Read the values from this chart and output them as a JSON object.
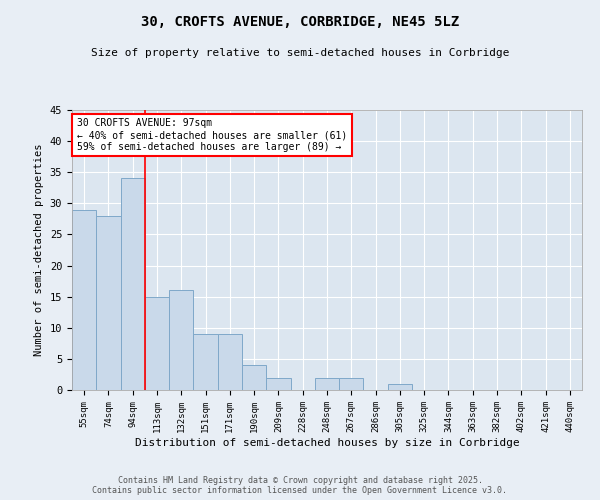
{
  "title_line1": "30, CROFTS AVENUE, CORBRIDGE, NE45 5LZ",
  "title_line2": "Size of property relative to semi-detached houses in Corbridge",
  "xlabel": "Distribution of semi-detached houses by size in Corbridge",
  "ylabel": "Number of semi-detached properties",
  "categories": [
    "55sqm",
    "74sqm",
    "94sqm",
    "113sqm",
    "132sqm",
    "151sqm",
    "171sqm",
    "190sqm",
    "209sqm",
    "228sqm",
    "248sqm",
    "267sqm",
    "286sqm",
    "305sqm",
    "325sqm",
    "344sqm",
    "363sqm",
    "382sqm",
    "402sqm",
    "421sqm",
    "440sqm"
  ],
  "values": [
    29,
    28,
    34,
    15,
    16,
    9,
    9,
    4,
    2,
    0,
    2,
    2,
    0,
    1,
    0,
    0,
    0,
    0,
    0,
    0,
    0
  ],
  "bar_color": "#c9d9ea",
  "bar_edge_color": "#7fa8c9",
  "bar_width": 1.0,
  "ylim": [
    0,
    45
  ],
  "yticks": [
    0,
    5,
    10,
    15,
    20,
    25,
    30,
    35,
    40,
    45
  ],
  "red_line_x": 2.5,
  "annotation_title": "30 CROFTS AVENUE: 97sqm",
  "annotation_line1": "← 40% of semi-detached houses are smaller (61)",
  "annotation_line2": "59% of semi-detached houses are larger (89) →",
  "background_color": "#e8eef5",
  "plot_bg_color": "#dce6f0",
  "grid_color": "#ffffff",
  "footer_line1": "Contains HM Land Registry data © Crown copyright and database right 2025.",
  "footer_line2": "Contains public sector information licensed under the Open Government Licence v3.0."
}
